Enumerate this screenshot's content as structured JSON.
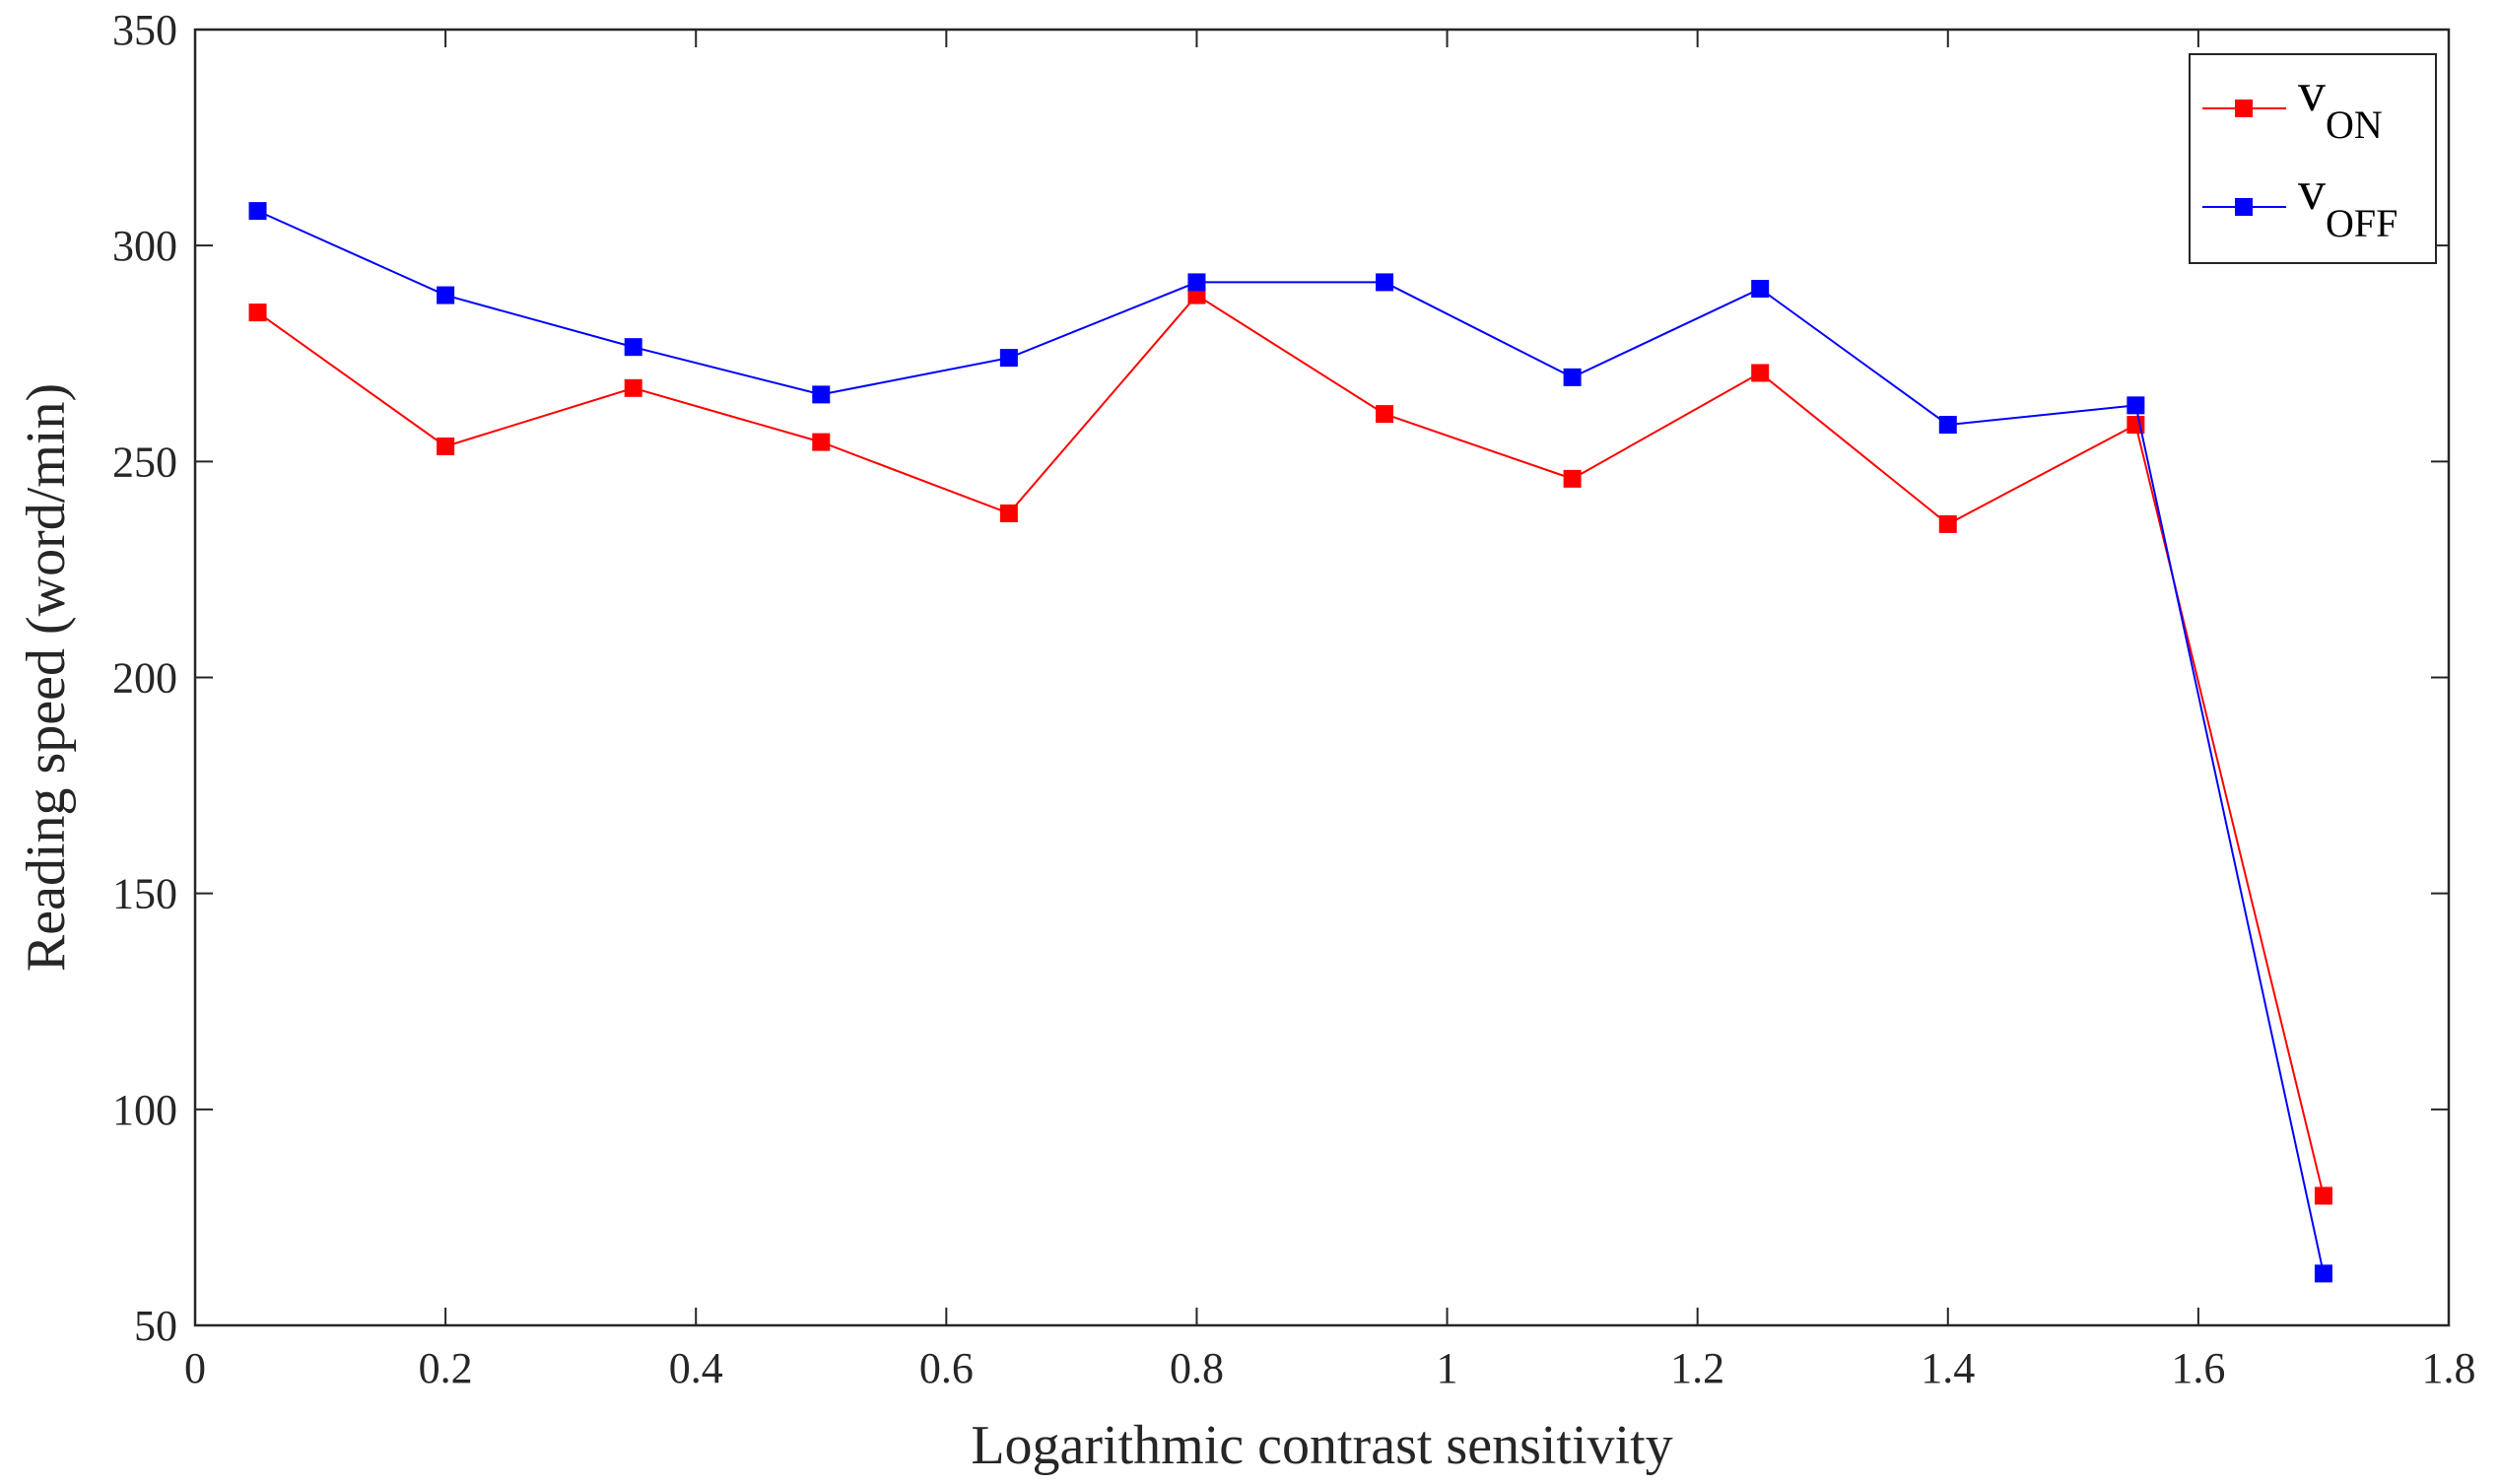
{
  "chart_data": {
    "type": "line",
    "title": "",
    "xlabel": "Logarithmic contrast sensitivity",
    "ylabel": "Reading speed (word/min)",
    "xlim": [
      0,
      1.8
    ],
    "ylim": [
      50,
      350
    ],
    "xticks": [
      "0",
      "0.2",
      "0.4",
      "0.6",
      "0.8",
      "1",
      "1.2",
      "1.4",
      "1.6",
      "1.8"
    ],
    "yticks": [
      "50",
      "100",
      "150",
      "200",
      "250",
      "300",
      "350"
    ],
    "x": [
      0.05,
      0.2,
      0.35,
      0.5,
      0.65,
      0.8,
      0.95,
      1.1,
      1.25,
      1.4,
      1.55,
      1.7
    ],
    "legend_position": "top-right",
    "series": [
      {
        "name": "v",
        "subscript": "ON",
        "color": "#ff0000",
        "values": [
          284.5,
          253.5,
          267,
          254.5,
          238,
          288.5,
          261,
          246,
          270.5,
          235.5,
          258.5,
          80
        ]
      },
      {
        "name": "v",
        "subscript": "OFF",
        "color": "#0000ff",
        "values": [
          308,
          288.5,
          276.5,
          265.5,
          274,
          291.5,
          291.5,
          269.5,
          290,
          258.5,
          263,
          62
        ]
      }
    ]
  }
}
